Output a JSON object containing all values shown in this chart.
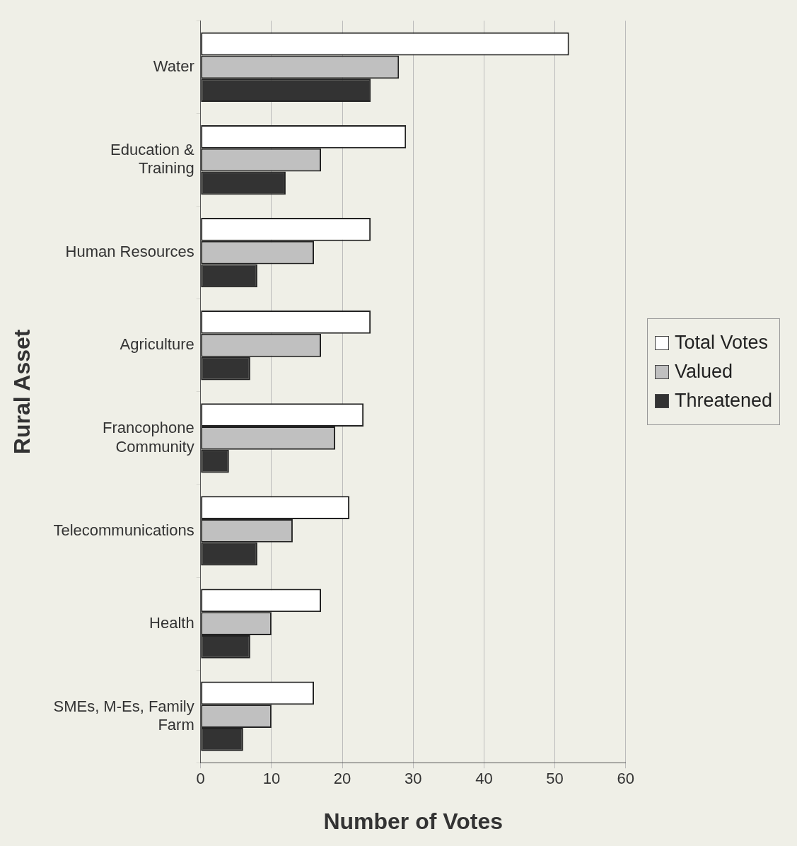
{
  "chart_data": {
    "type": "bar",
    "orientation": "horizontal",
    "xlabel": "Number of Votes",
    "ylabel": "Rural Asset",
    "categories": [
      "Water",
      "Education & Training",
      "Human Resources",
      "Agriculture",
      "Francophone Community",
      "Telecommunications",
      "Health",
      "SMEs, M-Es, Family Farm"
    ],
    "series": [
      {
        "name": "Total Votes",
        "color": "#ffffff",
        "values": [
          52,
          29,
          24,
          24,
          23,
          21,
          17,
          16
        ]
      },
      {
        "name": "Valued",
        "color": "#c0c0c0",
        "values": [
          28,
          17,
          16,
          17,
          19,
          13,
          10,
          10
        ]
      },
      {
        "name": "Threatened",
        "color": "#333333",
        "values": [
          24,
          12,
          8,
          7,
          4,
          8,
          7,
          6
        ]
      }
    ],
    "xlim": [
      0,
      60
    ],
    "xticks": [
      0,
      10,
      20,
      30,
      40,
      50,
      60
    ],
    "grid": "x",
    "legend": "right"
  }
}
